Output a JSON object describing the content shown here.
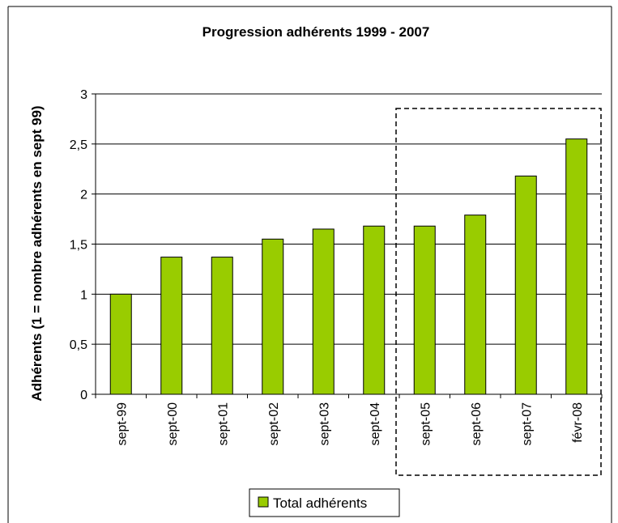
{
  "chart_data": {
    "type": "bar",
    "title": "Progression adhérents 1999 - 2007",
    "xlabel": "",
    "ylabel": "Adhérents (1 = nombre adhérents en sept 99)",
    "categories": [
      "sept-99",
      "sept-00",
      "sept-01",
      "sept-02",
      "sept-03",
      "sept-04",
      "sept-05",
      "sept-06",
      "sept-07",
      "févr-08"
    ],
    "series": [
      {
        "name": "Total adhérents",
        "color": "#99cc00",
        "values": [
          1.0,
          1.37,
          1.37,
          1.55,
          1.65,
          1.68,
          1.68,
          1.79,
          2.18,
          2.55
        ]
      }
    ],
    "ylim": [
      0,
      3
    ],
    "yticks": [
      "0",
      "0,5",
      "1",
      "1,5",
      "2",
      "2,5",
      "3"
    ],
    "grid": true,
    "legend": "bottom",
    "highlight_range": [
      "sept-05",
      "févr-08"
    ]
  }
}
